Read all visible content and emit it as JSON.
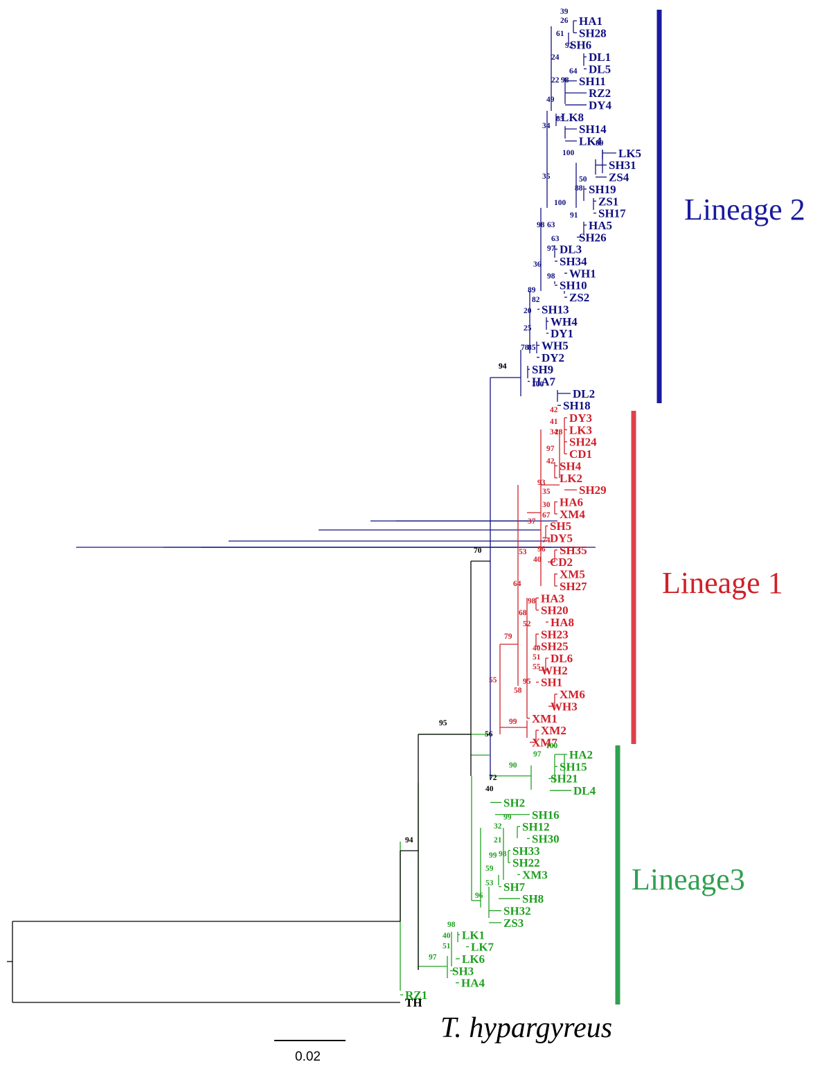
{
  "outgroup": {
    "tip": "TH",
    "species": "T. hypargyreus"
  },
  "scale_bar": {
    "label": "0.02"
  },
  "colors": {
    "lineage1": "#d0202a",
    "lineage2": "#101080",
    "lineage3": "#20a020",
    "root": "#000000",
    "lineage1_bar": "#e0404a",
    "lineage2_bar": "#1a1aa0",
    "lineage3_bar": "#30a050"
  },
  "lineages": [
    {
      "id": "lineage2",
      "label": "Lineage 2",
      "color": "#1a1aa0",
      "tips": [
        "HA1",
        "SH28",
        "SH6",
        "DL1",
        "DL5",
        "SH11",
        "RZ2",
        "DY4",
        "LK8",
        "SH14",
        "LK4",
        "LK5",
        "SH31",
        "ZS4",
        "SH19",
        "ZS1",
        "SH17",
        "HA5",
        "SH26",
        "DL3",
        "SH34",
        "WH1",
        "SH10",
        "ZS2",
        "SH13",
        "WH4",
        "DY1",
        "WH5",
        "DY2",
        "SH9",
        "HA7",
        "DL2",
        "SH18"
      ]
    },
    {
      "id": "lineage1",
      "label": "Lineage 1",
      "color": "#d0202a",
      "tips": [
        "DY3",
        "LK3",
        "SH24",
        "CD1",
        "SH4",
        "LK2",
        "SH29",
        "HA6",
        "XM4",
        "SH5",
        "DY5",
        "SH35",
        "CD2",
        "XM5",
        "SH27",
        "HA3",
        "SH20",
        "HA8",
        "SH23",
        "SH25",
        "DL6",
        "WH2",
        "SH1",
        "XM6",
        "WH3",
        "XM1",
        "XM2",
        "XM7"
      ]
    },
    {
      "id": "lineage3",
      "label": "Lineage3",
      "color": "#20a020",
      "tips": [
        "HA2",
        "SH15",
        "SH21",
        "DL4",
        "SH2",
        "SH16",
        "SH12",
        "SH30",
        "SH33",
        "SH22",
        "XM3",
        "SH7",
        "SH8",
        "SH32",
        "ZS3",
        "LK1",
        "LK7",
        "LK6",
        "SH3",
        "HA4",
        "RZ1"
      ]
    }
  ],
  "bootstrap": {
    "lineage2": [
      "39",
      "26",
      "61",
      "92",
      "24",
      "64",
      "22",
      "98",
      "49",
      "85",
      "34",
      "89",
      "100",
      "35",
      "50",
      "88",
      "100",
      "91",
      "98",
      "63",
      "63",
      "97",
      "36",
      "98",
      "89",
      "82",
      "20",
      "25",
      "78",
      "85",
      "94",
      "100"
    ],
    "lineage1": [
      "42",
      "41",
      "34",
      "28",
      "97",
      "42",
      "93",
      "35",
      "30",
      "67",
      "37",
      "74",
      "96",
      "40",
      "53",
      "64",
      "98",
      "68",
      "52",
      "40",
      "51",
      "55",
      "79",
      "95",
      "58",
      "55",
      "99"
    ],
    "lineage3": [
      "100",
      "97",
      "90",
      "99",
      "32",
      "21",
      "98",
      "99",
      "59",
      "53",
      "96",
      "98",
      "40",
      "51",
      "97"
    ],
    "backbone": [
      "94",
      "70",
      "56",
      "72",
      "40",
      "95",
      "94"
    ]
  }
}
